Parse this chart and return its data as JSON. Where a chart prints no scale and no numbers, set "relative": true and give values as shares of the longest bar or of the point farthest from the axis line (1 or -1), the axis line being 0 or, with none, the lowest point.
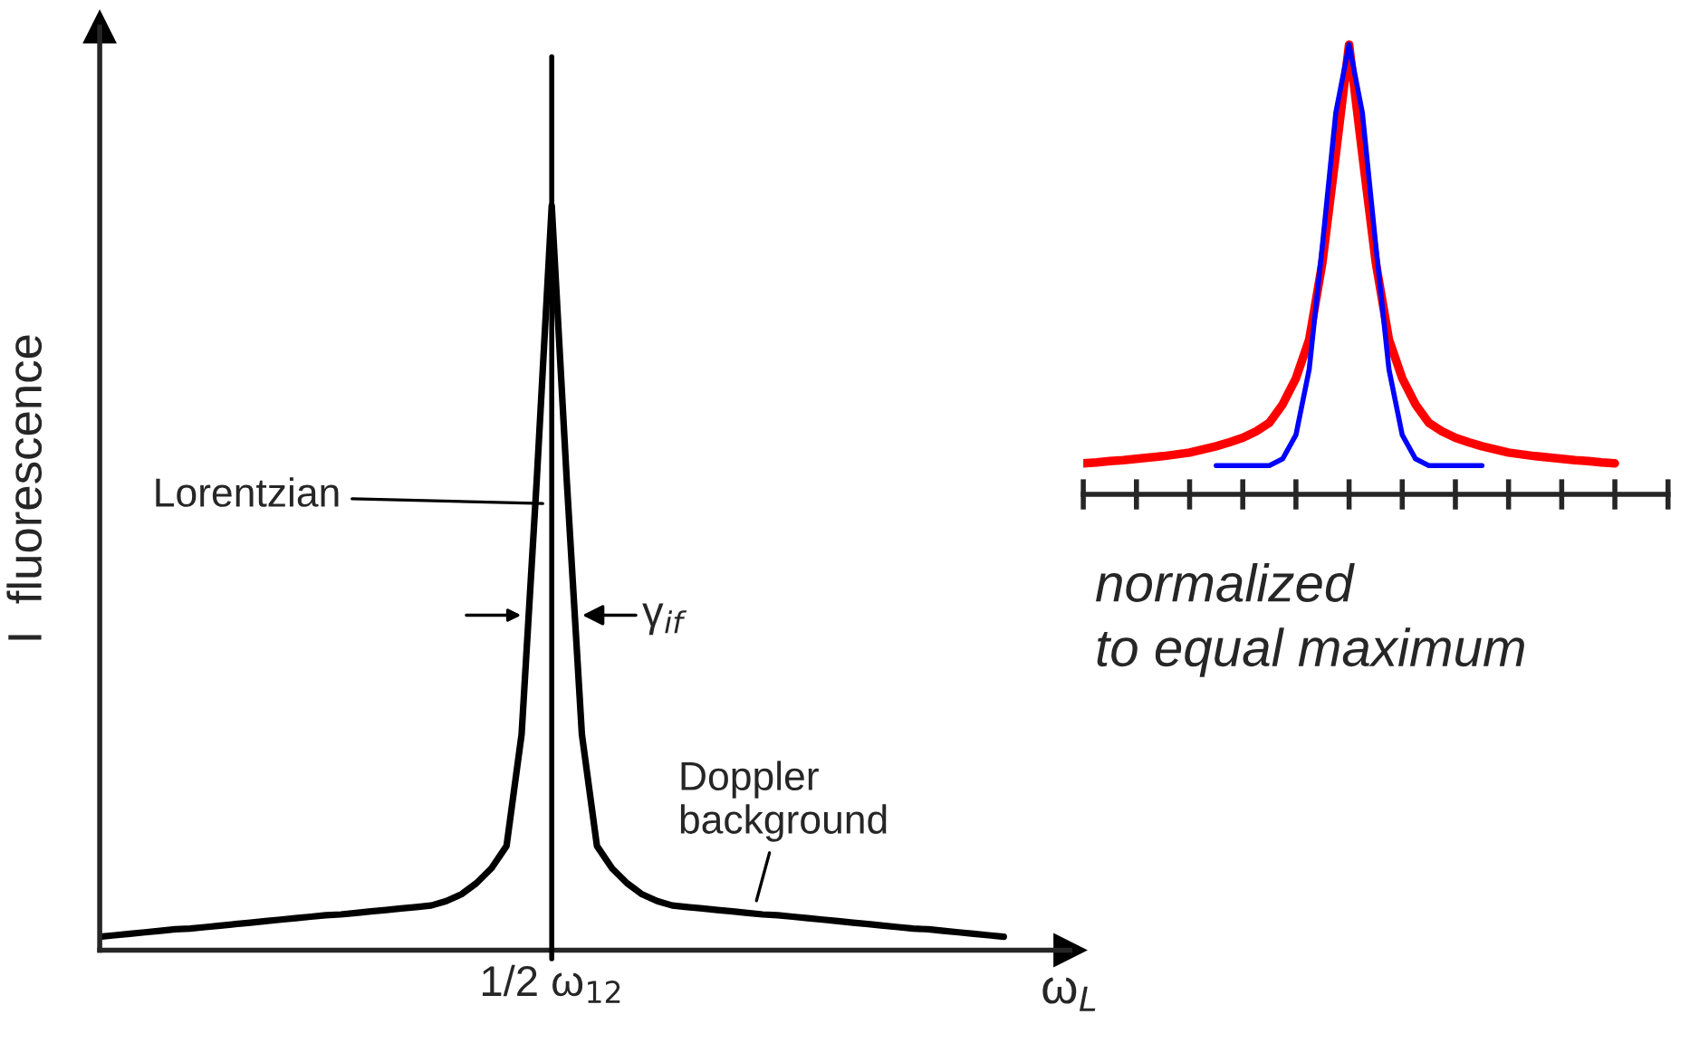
{
  "chart_data": [
    {
      "type": "line",
      "relative": true,
      "ylabel": "I  fluorescence",
      "xlabel": "ω$_{L}$",
      "categories": [
        null,
        null,
        null,
        null,
        null,
        null,
        null,
        null,
        null,
        null,
        null,
        null,
        null,
        null,
        null,
        null,
        null,
        null,
        null,
        null,
        null,
        null,
        null,
        null,
        null,
        null,
        null,
        null,
        null,
        null,
        null,
        null,
        null,
        null,
        null,
        null,
        null,
        null,
        null,
        null,
        null,
        null,
        null,
        null,
        null,
        null,
        null,
        null,
        null,
        null,
        null,
        null,
        null,
        null,
        null,
        null,
        null,
        null,
        null,
        null,
        null
      ],
      "series": [
        {
          "color": "#000000",
          "values": [
            0.018,
            0.02,
            0.022,
            0.024,
            0.026,
            0.028,
            0.029,
            0.031,
            0.033,
            0.035,
            0.037,
            0.039,
            0.041,
            0.043,
            0.045,
            0.047,
            0.048,
            0.05,
            0.052,
            0.054,
            0.056,
            0.058,
            0.06,
            0.066,
            0.075,
            0.09,
            0.11,
            0.14,
            0.29,
            0.63,
            1.0,
            0.63,
            0.29,
            0.14,
            0.11,
            0.09,
            0.075,
            0.066,
            0.06,
            0.058,
            0.056,
            0.054,
            0.052,
            0.05,
            0.048,
            0.047,
            0.045,
            0.043,
            0.041,
            0.039,
            0.037,
            0.035,
            0.033,
            0.031,
            0.029,
            0.028,
            0.026,
            0.024,
            0.022,
            0.02,
            0.018
          ]
        }
      ],
      "annotations": [
        "Lorentzian",
        "γ$_{if}$",
        "Doppler\nbackground",
        "1/2 ω$_{12}$"
      ],
      "marker": "none",
      "line_style": "solid"
    },
    {
      "type": "line",
      "relative": true,
      "categories": [
        null,
        null,
        null,
        null,
        null,
        null,
        null,
        null,
        null,
        null,
        null,
        null,
        null,
        null,
        null,
        null,
        null,
        null,
        null,
        null,
        null,
        null,
        null,
        null,
        null,
        null,
        null,
        null,
        null,
        null,
        null,
        null,
        null,
        null,
        null,
        null,
        null,
        null,
        null,
        null,
        null,
        null,
        null,
        null,
        null
      ],
      "series": [
        {
          "color": "#ff0000",
          "values": [
            0.069,
            0.071,
            0.074,
            0.076,
            0.079,
            0.082,
            0.085,
            0.089,
            0.093,
            0.1,
            0.107,
            0.116,
            0.126,
            0.14,
            0.159,
            0.2,
            0.258,
            0.344,
            0.517,
            0.755,
            1.0,
            0.755,
            0.517,
            0.344,
            0.258,
            0.2,
            0.159,
            0.14,
            0.126,
            0.116,
            0.107,
            0.1,
            0.093,
            0.089,
            0.085,
            0.082,
            0.079,
            0.076,
            0.074,
            0.071,
            0.069,
            null,
            null,
            null,
            null
          ]
        },
        {
          "color": "#0000ff",
          "values": [
            null,
            null,
            null,
            null,
            null,
            null,
            null,
            null,
            null,
            null,
            0.064,
            0.064,
            0.064,
            0.064,
            0.064,
            0.079,
            0.132,
            0.278,
            0.556,
            0.848,
            1.0,
            0.848,
            0.556,
            0.278,
            0.132,
            0.079,
            0.064,
            0.064,
            0.064,
            0.064,
            0.064,
            null,
            null,
            null,
            null,
            null,
            null,
            null,
            null,
            null,
            null,
            null,
            null,
            null,
            null
          ]
        }
      ],
      "annotations": [
        "normalized\nto equal maximum"
      ],
      "marker": "none",
      "line_style": "solid"
    }
  ]
}
